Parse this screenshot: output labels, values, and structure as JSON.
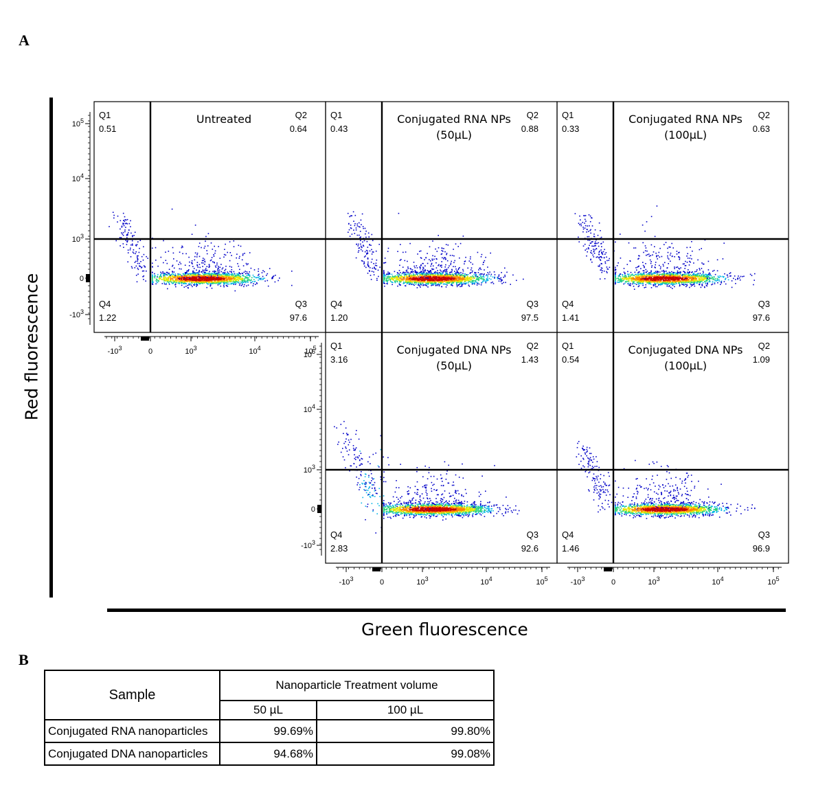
{
  "figure": {
    "panel_a_label": "A",
    "panel_b_label": "B",
    "y_axis_title": "Red fluorescence",
    "x_axis_title": "Green fluorescence"
  },
  "chart_data": {
    "type": "scatter",
    "subtype": "flow-cytometry-quadrant-density",
    "x_axis": {
      "scale": "biexponential",
      "tick_labels": [
        "-10^3",
        "0",
        "10^3",
        "10^4",
        "10^5"
      ]
    },
    "y_axis": {
      "scale": "biexponential",
      "tick_labels": [
        "-10^3",
        "0",
        "10^3",
        "10^4",
        "10^5"
      ]
    },
    "gate": {
      "x": 0,
      "y": 1000
    },
    "color_scale": [
      "#0000c8",
      "#00b4e6",
      "#28d278",
      "#e6e600",
      "#ff8200",
      "#c80000"
    ],
    "panels": [
      {
        "title": [
          "Untreated"
        ],
        "Q1": "0.51",
        "Q2": "0.64",
        "Q3": "97.6",
        "Q4": "1.22",
        "show_x_ticks": true,
        "show_y_ticks": true,
        "variant": "untreated"
      },
      {
        "title": [
          "Conjugated RNA NPs",
          "(50µL)"
        ],
        "Q1": "0.43",
        "Q2": "0.88",
        "Q3": "97.5",
        "Q4": "1.20",
        "show_x_ticks": false,
        "show_y_ticks": false,
        "variant": "rna"
      },
      {
        "title": [
          "Conjugated RNA NPs",
          "(100µL)"
        ],
        "Q1": "0.33",
        "Q2": "0.63",
        "Q3": "97.6",
        "Q4": "1.41",
        "show_x_ticks": false,
        "show_y_ticks": false,
        "variant": "rna"
      },
      {
        "title": [
          "Conjugated DNA NPs",
          "(50µL)"
        ],
        "Q1": "3.16",
        "Q2": "1.43",
        "Q3": "92.6",
        "Q4": "2.83",
        "show_x_ticks": true,
        "show_y_ticks": true,
        "variant": "dna50"
      },
      {
        "title": [
          "Conjugated DNA NPs",
          "(100µL)"
        ],
        "Q1": "0.54",
        "Q2": "1.09",
        "Q3": "96.9",
        "Q4": "1.46",
        "show_x_ticks": true,
        "show_y_ticks": false,
        "variant": "dna100"
      }
    ]
  },
  "table": {
    "header_sample": "Sample",
    "header_group": "Nanoparticle Treatment volume",
    "col_50": "50 µL",
    "col_100": "100 µL",
    "rows": [
      {
        "sample": "Conjugated RNA nanoparticles",
        "v50": "99.69%",
        "v100": "99.80%"
      },
      {
        "sample": "Conjugated DNA nanoparticles",
        "v50": "94.68%",
        "v100": "99.08%"
      }
    ]
  }
}
